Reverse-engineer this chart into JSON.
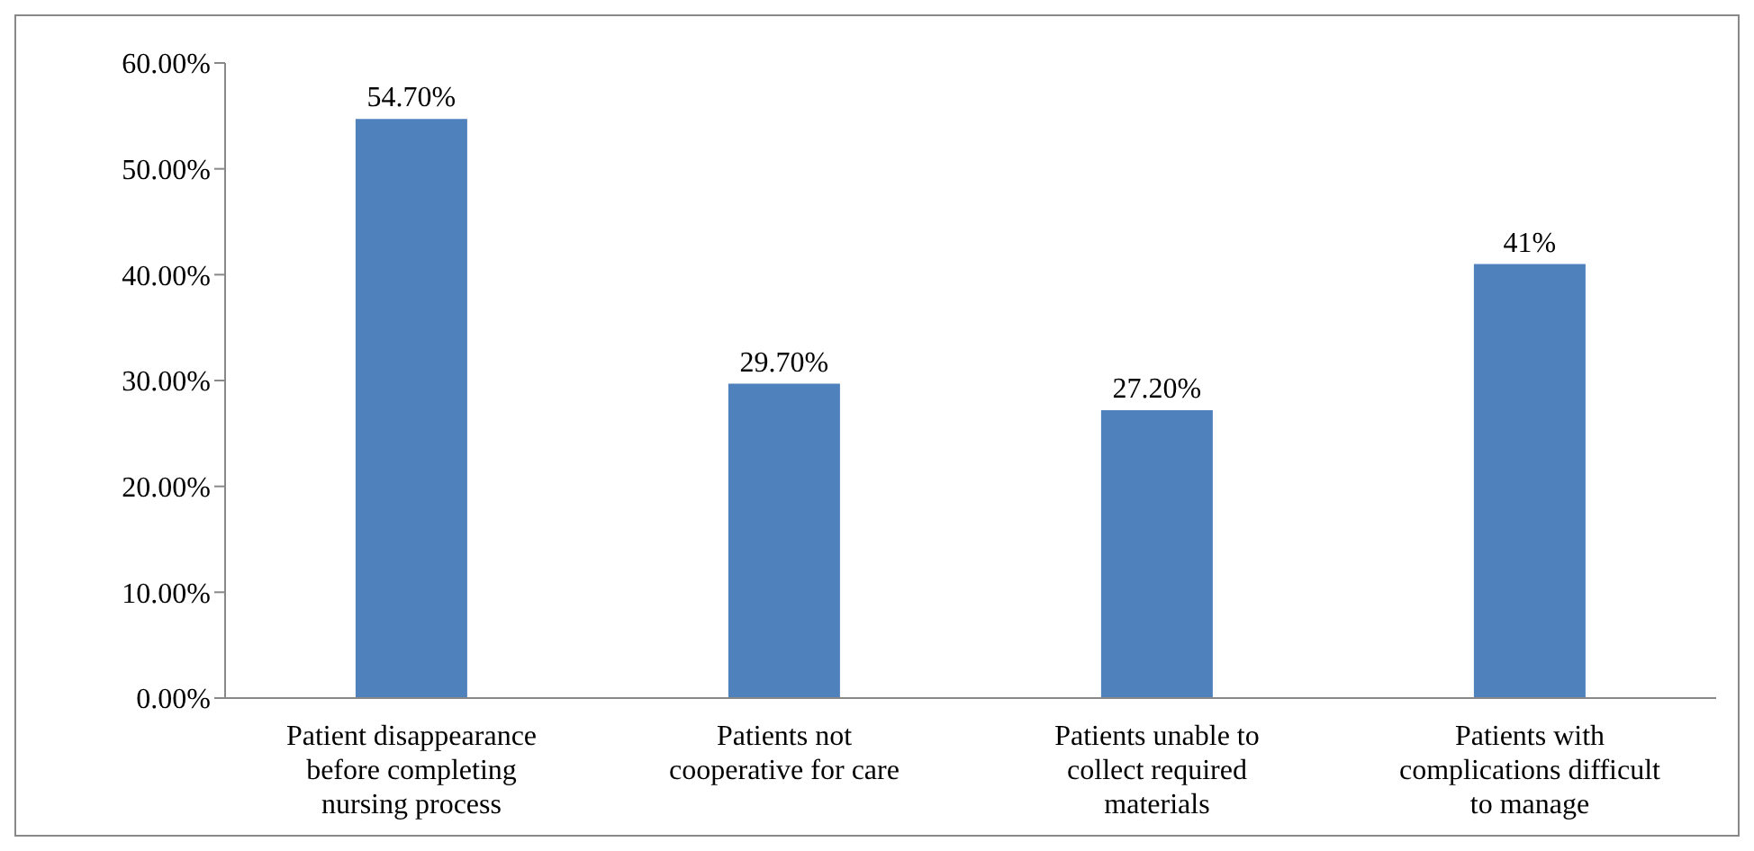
{
  "chart_data": {
    "type": "bar",
    "categories": [
      "Patient disappearance before completing nursing process",
      "Patients not cooperative for care",
      "Patients unable to collect required materials",
      "Patients with complications difficult to manage"
    ],
    "values": [
      54.7,
      29.7,
      27.2,
      41
    ],
    "value_labels": [
      "54.70%",
      "29.70%",
      "27.20%",
      "41%"
    ],
    "color": "#4f81bd",
    "ylim": [
      0,
      60
    ],
    "yticks": [
      {
        "value": 0,
        "label": "0.00%"
      },
      {
        "value": 10,
        "label": "10.00%"
      },
      {
        "value": 20,
        "label": "20.00%"
      },
      {
        "value": 30,
        "label": "30.00%"
      },
      {
        "value": 40,
        "label": "40.00%"
      },
      {
        "value": 50,
        "label": "50.00%"
      },
      {
        "value": 60,
        "label": "60.00%"
      }
    ],
    "grid": false
  }
}
